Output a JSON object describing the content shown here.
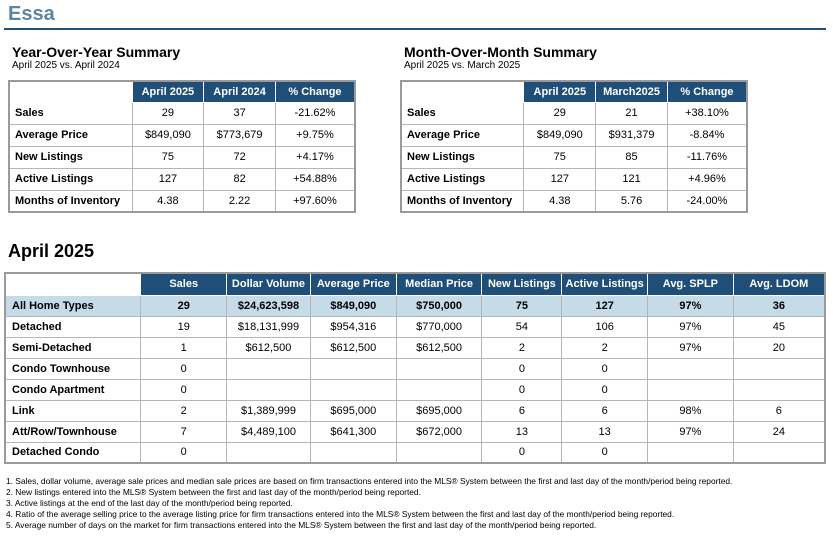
{
  "town": "Essa",
  "yoy": {
    "title": "Year-Over-Year Summary",
    "subtitle": "April 2025 vs. April 2024",
    "columns": [
      "April 2025",
      "April 2024",
      "% Change"
    ],
    "rows": [
      {
        "label": "Sales",
        "values": [
          "29",
          "37",
          "-21.62%"
        ]
      },
      {
        "label": "Average Price",
        "values": [
          "$849,090",
          "$773,679",
          "+9.75%"
        ]
      },
      {
        "label": "New Listings",
        "values": [
          "75",
          "72",
          "+4.17%"
        ]
      },
      {
        "label": "Active Listings",
        "values": [
          "127",
          "82",
          "+54.88%"
        ]
      },
      {
        "label": "Months of Inventory",
        "values": [
          "4.38",
          "2.22",
          "+97.60%"
        ]
      }
    ]
  },
  "mom": {
    "title": "Month-Over-Month Summary",
    "subtitle": "April 2025 vs. March 2025",
    "columns": [
      "April 2025",
      "March2025",
      "% Change"
    ],
    "rows": [
      {
        "label": "Sales",
        "values": [
          "29",
          "21",
          "+38.10%"
        ]
      },
      {
        "label": "Average Price",
        "values": [
          "$849,090",
          "$931,379",
          "-8.84%"
        ]
      },
      {
        "label": "New Listings",
        "values": [
          "75",
          "85",
          "-11.76%"
        ]
      },
      {
        "label": "Active Listings",
        "values": [
          "127",
          "121",
          "+4.96%"
        ]
      },
      {
        "label": "Months of Inventory",
        "values": [
          "4.38",
          "5.76",
          "-24.00%"
        ]
      }
    ]
  },
  "month": {
    "title": "April 2025",
    "columns": [
      "Sales",
      "Dollar Volume",
      "Average Price",
      "Median Price",
      "New Listings",
      "Active Listings",
      "Avg. SPLP",
      "Avg. LDOM"
    ],
    "rows": [
      {
        "label": "All Home Types",
        "values": [
          "29",
          "$24,623,598",
          "$849,090",
          "$750,000",
          "75",
          "127",
          "97%",
          "36"
        ]
      },
      {
        "label": "Detached",
        "values": [
          "19",
          "$18,131,999",
          "$954,316",
          "$770,000",
          "54",
          "106",
          "97%",
          "45"
        ]
      },
      {
        "label": "Semi-Detached",
        "values": [
          "1",
          "$612,500",
          "$612,500",
          "$612,500",
          "2",
          "2",
          "97%",
          "20"
        ]
      },
      {
        "label": "Condo Townhouse",
        "values": [
          "0",
          "",
          "",
          "",
          "0",
          "0",
          "",
          ""
        ]
      },
      {
        "label": "Condo Apartment",
        "values": [
          "0",
          "",
          "",
          "",
          "0",
          "0",
          "",
          ""
        ]
      },
      {
        "label": "Link",
        "values": [
          "2",
          "$1,389,999",
          "$695,000",
          "$695,000",
          "6",
          "6",
          "98%",
          "6"
        ]
      },
      {
        "label": "Att/Row/Townhouse",
        "values": [
          "7",
          "$4,489,100",
          "$641,300",
          "$672,000",
          "13",
          "13",
          "97%",
          "24"
        ]
      },
      {
        "label": "Detached Condo",
        "values": [
          "0",
          "",
          "",
          "",
          "0",
          "0",
          "",
          ""
        ]
      }
    ]
  },
  "notes": [
    "1. Sales, dollar volume, average sale prices and median sale prices are based on firm transactions entered into the MLS® System between the first and last day of the month/period being reported.",
    "2. New listings entered into the MLS® System between the first and last day of the month/period being reported.",
    "3. Active listings at the end of the last day of the month/period being reported.",
    "4. Ratio of the average selling price to the average listing price for firm transactions entered into the MLS® System between the first and last day of the month/period being reported.",
    "5. Average number of days on the market for firm transactions entered into the MLS® System between the first and last day of the month/period being reported."
  ],
  "colors": {
    "header": "#1f4e79",
    "highlight": "#c5dbe8",
    "title": "#5a86a3"
  }
}
